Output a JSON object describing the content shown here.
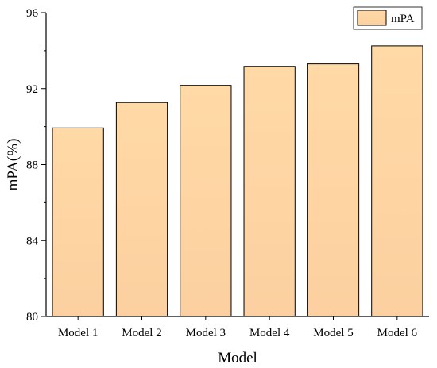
{
  "chart_data": {
    "type": "bar",
    "categories": [
      "Model 1",
      "Model 2",
      "Model 3",
      "Model 4",
      "Model 5",
      "Model 6"
    ],
    "series": [
      {
        "name": "mPA",
        "values": [
          89.93,
          91.27,
          92.17,
          93.17,
          93.3,
          94.25
        ]
      }
    ],
    "xlabel": "Model",
    "ylabel": "mPA(%)",
    "ylim": [
      80,
      96
    ],
    "yticks": [
      80,
      84,
      88,
      92,
      96
    ],
    "ytick_labels": [
      "80",
      "84",
      "88",
      "92",
      "96"
    ],
    "grid": false,
    "legend_position": "top-right",
    "colors": {
      "bar_fill_top": "#ffd9a6",
      "bar_fill_bottom": "#fcd0a0",
      "bar_stroke": "#000000"
    }
  }
}
